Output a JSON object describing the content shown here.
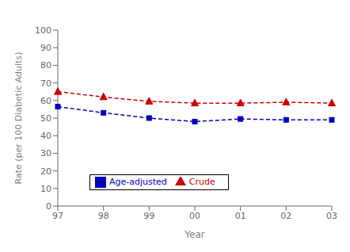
{
  "chart_data": {
    "type": "line",
    "categories": [
      "97",
      "98",
      "99",
      "00",
      "01",
      "02",
      "03"
    ],
    "series": [
      {
        "name": "Age-adjusted",
        "color": "#0000bb",
        "values": [
          56.5,
          53.0,
          50.0,
          48.0,
          49.5,
          49.0,
          49.0
        ],
        "marker": "square",
        "line_style": "dashed"
      },
      {
        "name": "Crude",
        "color": "#cc0000",
        "values": [
          65.0,
          62.0,
          59.5,
          58.5,
          58.5,
          59.0,
          58.5
        ],
        "marker": "triangle",
        "line_style": "dashed"
      }
    ],
    "xlabel": "Year",
    "ylabel": "Rate (per 100 Diabetic Adults)",
    "ylim": [
      0,
      100
    ],
    "yticks": [
      0,
      10,
      20,
      30,
      40,
      50,
      60,
      70,
      80,
      90,
      100
    ],
    "grid": false,
    "legend": "lower left"
  }
}
